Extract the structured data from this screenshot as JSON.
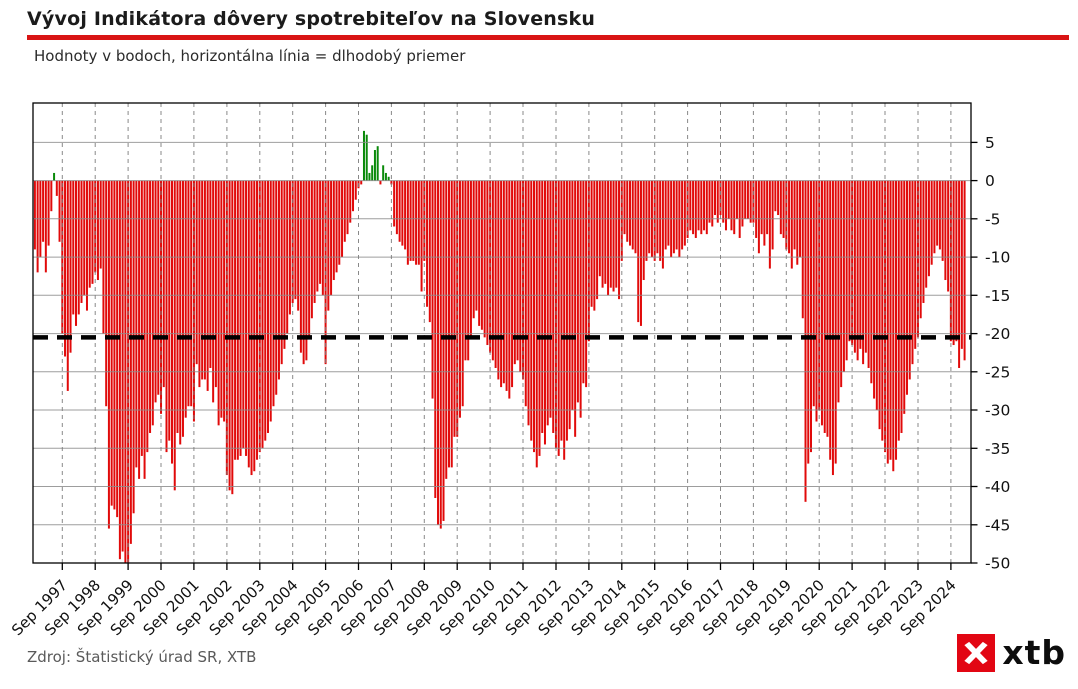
{
  "header": {
    "title": "Vývoj Indikátora dôvery spotrebiteľov na Slovensku",
    "subtitle": "Hodnoty v bodoch, horizontálna línia = dlhodobý priemer"
  },
  "footer": {
    "source": "Zdroj: Štatistický úrad SR, XTB",
    "logo_text": "xtb"
  },
  "colors": {
    "bar_negative": "#e10a0a",
    "bar_positive": "#0a8a0a",
    "average_line": "#000000",
    "accent_red": "#d91414",
    "logo_red": "#e20613",
    "grid_gray": "#7d7d7d"
  },
  "chart_data": {
    "type": "bar",
    "title": "Vývoj Indikátora dôvery spotrebiteľov na Slovensku",
    "subtitle": "Hodnoty v bodoch, horizontálna línia = dlhodobý priemer",
    "xlabel": "",
    "ylabel": "",
    "ylim": [
      -50,
      10.1
    ],
    "grid": true,
    "average_value": -20.5,
    "frequency": "monthly",
    "start_year": 1996,
    "start_month": 11,
    "y_ticks": [
      5,
      0,
      -5,
      -10,
      -15,
      -20,
      -25,
      -30,
      -35,
      -40,
      -45,
      -50
    ],
    "x_tick_labels": [
      "Sep 1997",
      "Sep 1998",
      "Sep 1999",
      "Sep 2000",
      "Sep 2001",
      "Sep 2002",
      "Sep 2003",
      "Sep 2004",
      "Sep 2005",
      "Sep 2006",
      "Sep 2007",
      "Sep 2008",
      "Sep 2009",
      "Sep 2010",
      "Sep 2011",
      "Sep 2012",
      "Sep 2013",
      "Sep 2014",
      "Sep 2015",
      "Sep 2016",
      "Sep 2017",
      "Sep 2018",
      "Sep 2019",
      "Sep 2020",
      "Sep 2021",
      "Sep 2022",
      "Sep 2023",
      "Sep 2024"
    ],
    "series": [
      {
        "name": "Indikátor dôvery spotrebiteľov",
        "values": [
          -9,
          -12,
          -10,
          -8,
          -12,
          -8.5,
          -4,
          1,
          -2,
          -8,
          -20,
          -23,
          -27.5,
          -22.5,
          -17.5,
          -19,
          -17.5,
          -16,
          -15,
          -17,
          -14,
          -13.5,
          -12,
          -13,
          -11.5,
          -20,
          -29.5,
          -45.5,
          -42.5,
          -43,
          -44,
          -49.5,
          -48.5,
          -50,
          -50,
          -47.5,
          -43.5,
          -37.5,
          -39,
          -36,
          -39,
          -35.5,
          -33,
          -32,
          -29,
          -28,
          -30.5,
          -27,
          -35.5,
          -34,
          -37,
          -40.5,
          -33,
          -34.5,
          -33.5,
          -31,
          -29.5,
          -29.5,
          -31.5,
          -24,
          -27,
          -26,
          -26,
          -27.5,
          -24.5,
          -29,
          -27,
          -32,
          -31,
          -31.5,
          -38.5,
          -40.5,
          -41,
          -36.5,
          -36.5,
          -36,
          -35,
          -36,
          -37.5,
          -38.5,
          -38,
          -36.5,
          -35.5,
          -35,
          -34,
          -33,
          -31.5,
          -29.5,
          -28,
          -26,
          -24,
          -22,
          -20,
          -17.5,
          -16,
          -15.5,
          -17,
          -22.5,
          -24,
          -23.5,
          -20.5,
          -18,
          -16,
          -14.5,
          -13.5,
          -15,
          -24,
          -17,
          -15,
          -13,
          -12,
          -11,
          -10,
          -8,
          -7,
          -5.5,
          -4,
          -2.5,
          -1,
          -0.5,
          6.5,
          6,
          1,
          2,
          4,
          4.5,
          -0.5,
          2,
          1,
          0.5,
          -0.5,
          -6,
          -7,
          -8,
          -8.5,
          -9,
          -11,
          -10.5,
          -10.5,
          -11,
          -11,
          -14.5,
          -10.5,
          -16.5,
          -18.5,
          -28.5,
          -41.5,
          -45,
          -45.5,
          -44.5,
          -39,
          -37.5,
          -37.5,
          -33.5,
          -33.5,
          -31,
          -29.5,
          -23.5,
          -23.5,
          -20.5,
          -18,
          -17,
          -19,
          -19.5,
          -20.5,
          -21.5,
          -22.5,
          -23.5,
          -24.5,
          -26,
          -27,
          -26.5,
          -27.5,
          -28.5,
          -27,
          -24,
          -23.5,
          -25,
          -26,
          -29.5,
          -32,
          -34,
          -35.5,
          -37.5,
          -36,
          -33,
          -34.5,
          -32,
          -31,
          -33,
          -35,
          -36,
          -34,
          -36.5,
          -34,
          -32.5,
          -30,
          -33.5,
          -29,
          -31,
          -26.5,
          -27,
          -21,
          -16.5,
          -17,
          -15.5,
          -12.5,
          -14,
          -13.5,
          -15,
          -14,
          -14.5,
          -14,
          -15.5,
          -10.5,
          -7,
          -8,
          -8.5,
          -9,
          -9.5,
          -18.5,
          -19,
          -13,
          -10.5,
          -9.5,
          -10,
          -10.5,
          -9.5,
          -10.5,
          -11.5,
          -9,
          -8.5,
          -10,
          -9.5,
          -9,
          -10,
          -9,
          -8.5,
          -7.5,
          -6.5,
          -7,
          -7.5,
          -6.5,
          -7,
          -6.5,
          -7,
          -5.5,
          -6,
          -4.5,
          -5.5,
          -4.5,
          -5.5,
          -6.5,
          -5,
          -6.5,
          -7,
          -5,
          -7.5,
          -6,
          -5,
          -5,
          -5.5,
          -5.5,
          -7.5,
          -9.5,
          -7,
          -8.5,
          -7,
          -11.5,
          -9,
          -4,
          -4.5,
          -7,
          -7.5,
          -9,
          -9.5,
          -11.5,
          -9,
          -11,
          -10,
          -18,
          -42,
          -37,
          -35.5,
          -29.5,
          -31.5,
          -30,
          -32,
          -33,
          -33.5,
          -36.5,
          -38.5,
          -37,
          -29,
          -27,
          -25,
          -23.5,
          -21,
          -21.5,
          -22.5,
          -23.5,
          -22,
          -24,
          -22.5,
          -24.5,
          -26.5,
          -28.5,
          -30,
          -32.5,
          -34,
          -35.5,
          -37,
          -36.5,
          -38,
          -36.5,
          -34,
          -33,
          -30.5,
          -28,
          -26,
          -24,
          -22,
          -20.5,
          -18,
          -16,
          -14,
          -12.5,
          -11,
          -9.5,
          -8.5,
          -9,
          -10.5,
          -13,
          -14.5,
          -21,
          -21.5,
          -21,
          -24.5,
          -22,
          -23.5
        ]
      }
    ]
  }
}
